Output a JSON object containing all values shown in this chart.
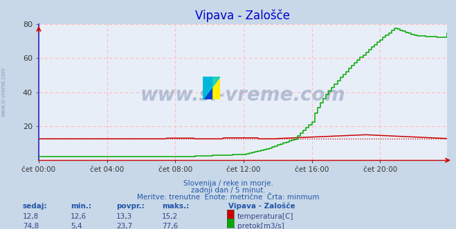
{
  "title": "Vipava - Zalošče",
  "title_color": "#0000cc",
  "bg_color": "#c8d8e8",
  "plot_bg_color": "#e8eef8",
  "grid_color": "#ddaaaa",
  "axis_color": "#4444cc",
  "x_ticks_labels": [
    "čet 00:00",
    "čet 04:00",
    "čet 08:00",
    "čet 12:00",
    "čet 16:00",
    "čet 20:00"
  ],
  "x_ticks_pos": [
    0,
    48,
    96,
    144,
    192,
    240
  ],
  "total_points": 288,
  "ylim": [
    0,
    80
  ],
  "yticks": [
    20,
    40,
    60,
    80
  ],
  "temp_color": "#cc0000",
  "flow_color": "#00aa00",
  "watermark_color": "#8899bb",
  "subtitle_color": "#2255aa",
  "label_color": "#2255aa",
  "footer_lines": [
    "Slovenija / reke in morje.",
    "zadnji dan / 5 minut.",
    "Meritve: trenutne  Enote: metrične  Črta: minmum"
  ],
  "stats_headers": [
    "sedaj:",
    "min.:",
    "povpr.:",
    "maks.:"
  ],
  "stats_temp": [
    "12,8",
    "12,6",
    "13,3",
    "15,2"
  ],
  "stats_flow": [
    "74,8",
    "5,4",
    "23,7",
    "77,6"
  ],
  "legend_title": "Vipava - Zalošče",
  "legend_items": [
    "temperatura[C]",
    "pretok[m3/s]"
  ],
  "legend_colors": [
    "#cc0000",
    "#00aa00"
  ]
}
